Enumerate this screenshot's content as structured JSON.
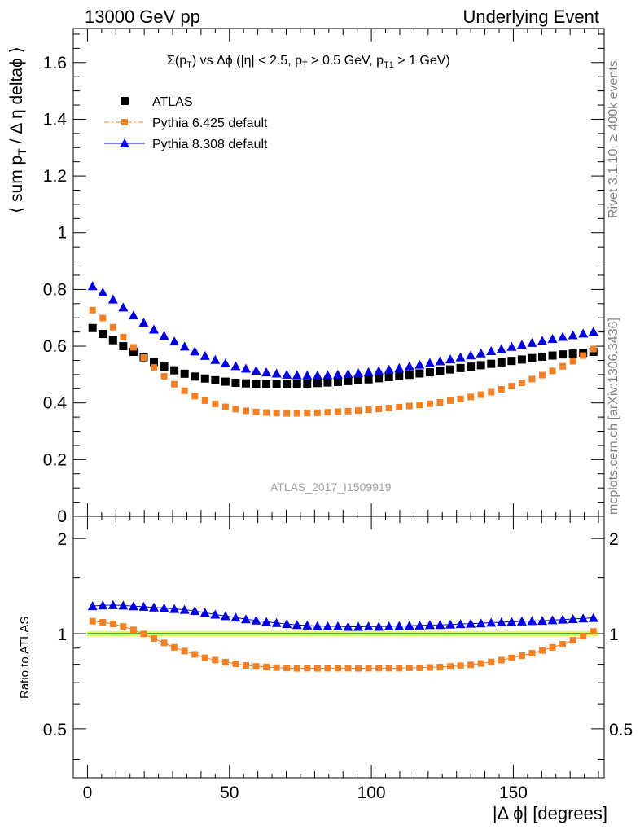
{
  "header": {
    "left": "13000 GeV pp",
    "right": "Underlying Event"
  },
  "side_text": {
    "rivet": "Rivet 3.1.10, ≥ 400k events",
    "mcplots": "mcplots.cern.ch [arXiv:1306.3436]"
  },
  "analysis_id": "ATLAS_2017_I1509919",
  "chart_data": [
    {
      "type": "scatter",
      "title": "Σ(pT) vs Δϕ (|η| < 2.5, pT > 0.5 GeV, pT1 > 1 GeV)",
      "xlabel": "|Δ ϕ| [degrees]",
      "ylabel": "⟨ sum pT / Δ η deltaϕ ⟩",
      "xlim": [
        -5,
        182
      ],
      "ylim": [
        0,
        1.72
      ],
      "yticks": [
        "0",
        "0.2",
        "0.4",
        "0.6",
        "0.8",
        "1",
        "1.2",
        "1.4",
        "1.6"
      ],
      "legend_position": "top-left",
      "x": [
        1.8,
        5.4,
        9.0,
        12.6,
        16.2,
        19.8,
        23.4,
        27.0,
        30.6,
        34.2,
        37.8,
        41.4,
        45.0,
        48.6,
        52.2,
        55.8,
        59.4,
        63.0,
        66.6,
        70.2,
        73.8,
        77.4,
        81.0,
        84.6,
        88.2,
        91.8,
        95.4,
        99.0,
        102.6,
        106.2,
        109.8,
        113.4,
        117.0,
        120.6,
        124.2,
        127.8,
        131.4,
        135.0,
        138.6,
        142.2,
        145.8,
        149.4,
        153.0,
        156.6,
        160.2,
        163.8,
        167.4,
        171.0,
        174.6,
        178.2
      ],
      "series": [
        {
          "name": "ATLAS",
          "color": "#000000",
          "marker": "square",
          "values": [
            0.664,
            0.643,
            0.621,
            0.6,
            0.58,
            0.561,
            0.544,
            0.528,
            0.515,
            0.503,
            0.493,
            0.486,
            0.48,
            0.475,
            0.471,
            0.469,
            0.467,
            0.466,
            0.466,
            0.466,
            0.467,
            0.468,
            0.47,
            0.472,
            0.474,
            0.477,
            0.48,
            0.483,
            0.487,
            0.491,
            0.495,
            0.499,
            0.504,
            0.508,
            0.513,
            0.518,
            0.523,
            0.528,
            0.533,
            0.538,
            0.543,
            0.548,
            0.553,
            0.558,
            0.563,
            0.567,
            0.571,
            0.574,
            0.577,
            0.58
          ]
        },
        {
          "name": "Pythia 6.425 default",
          "color": "#f38025",
          "marker": "small-square",
          "values": [
            0.727,
            0.699,
            0.667,
            0.632,
            0.596,
            0.56,
            0.525,
            0.494,
            0.466,
            0.443,
            0.424,
            0.408,
            0.396,
            0.386,
            0.378,
            0.372,
            0.368,
            0.366,
            0.364,
            0.363,
            0.363,
            0.364,
            0.365,
            0.367,
            0.369,
            0.371,
            0.373,
            0.376,
            0.379,
            0.382,
            0.385,
            0.389,
            0.393,
            0.397,
            0.402,
            0.408,
            0.414,
            0.421,
            0.429,
            0.438,
            0.448,
            0.459,
            0.471,
            0.484,
            0.498,
            0.513,
            0.529,
            0.547,
            0.567,
            0.59
          ]
        },
        {
          "name": "Pythia 8.308 default",
          "color": "#0000e0",
          "marker": "triangle",
          "values": [
            0.812,
            0.79,
            0.765,
            0.737,
            0.709,
            0.683,
            0.659,
            0.637,
            0.617,
            0.599,
            0.582,
            0.566,
            0.552,
            0.54,
            0.53,
            0.521,
            0.514,
            0.508,
            0.504,
            0.5,
            0.498,
            0.497,
            0.497,
            0.498,
            0.5,
            0.502,
            0.505,
            0.509,
            0.513,
            0.518,
            0.523,
            0.529,
            0.535,
            0.541,
            0.547,
            0.554,
            0.561,
            0.568,
            0.575,
            0.583,
            0.59,
            0.598,
            0.605,
            0.612,
            0.619,
            0.626,
            0.633,
            0.639,
            0.645,
            0.651
          ]
        }
      ]
    },
    {
      "type": "scatter",
      "ylabel": "Ratio to ATLAS",
      "xlabel": "|Δ ϕ| [degrees]",
      "xlim": [
        -5,
        182
      ],
      "ylim": [
        0.35,
        2.35
      ],
      "ylog": true,
      "xticks": [
        "0",
        "50",
        "100",
        "150"
      ],
      "yticks": [
        "0.5",
        "1",
        "2"
      ],
      "series": [
        {
          "name": "Pythia 6.425 default",
          "color": "#f38025",
          "values": [
            1.095,
            1.087,
            1.074,
            1.054,
            1.028,
            0.998,
            0.965,
            0.935,
            0.905,
            0.881,
            0.86,
            0.839,
            0.825,
            0.813,
            0.803,
            0.793,
            0.788,
            0.785,
            0.781,
            0.779,
            0.777,
            0.778,
            0.777,
            0.778,
            0.778,
            0.778,
            0.777,
            0.778,
            0.778,
            0.778,
            0.778,
            0.78,
            0.78,
            0.782,
            0.784,
            0.788,
            0.792,
            0.797,
            0.805,
            0.814,
            0.825,
            0.838,
            0.852,
            0.867,
            0.885,
            0.905,
            0.926,
            0.953,
            0.983,
            1.017
          ]
        },
        {
          "name": "Pythia 8.308 default",
          "color": "#0000e0",
          "values": [
            1.223,
            1.229,
            1.232,
            1.228,
            1.222,
            1.217,
            1.211,
            1.206,
            1.198,
            1.191,
            1.181,
            1.165,
            1.15,
            1.137,
            1.125,
            1.111,
            1.101,
            1.09,
            1.082,
            1.073,
            1.066,
            1.062,
            1.057,
            1.055,
            1.055,
            1.052,
            1.052,
            1.054,
            1.053,
            1.055,
            1.057,
            1.06,
            1.062,
            1.065,
            1.066,
            1.069,
            1.073,
            1.076,
            1.079,
            1.084,
            1.087,
            1.091,
            1.094,
            1.097,
            1.099,
            1.104,
            1.109,
            1.113,
            1.118,
            1.122
          ]
        }
      ]
    }
  ]
}
